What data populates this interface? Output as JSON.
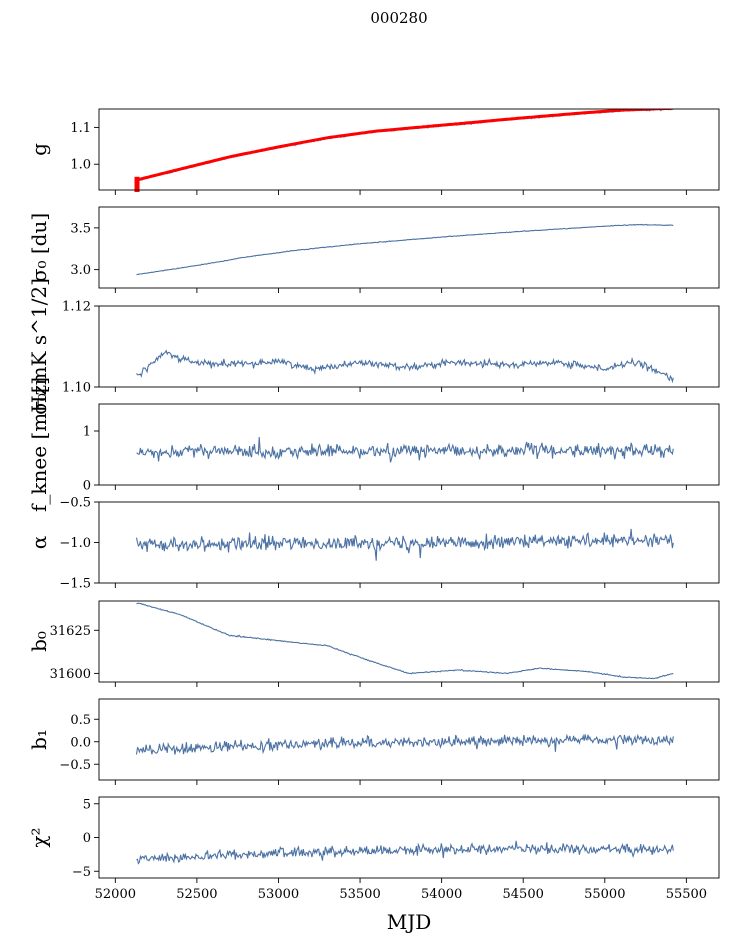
{
  "title": "000280",
  "colors": {
    "series": "#4c72a4",
    "overlay": "#ff0000",
    "axis": "#000000"
  },
  "chart_data": {
    "type": "line",
    "xlabel": "MJD",
    "xlim": [
      51900,
      55700
    ],
    "xticks": [
      52000,
      52500,
      53000,
      53500,
      54000,
      54500,
      55000,
      55500
    ],
    "xtick_labels": [
      "52000",
      "52500",
      "53000",
      "53500",
      "54000",
      "54500",
      "55000",
      "55500"
    ],
    "x_start": 52130,
    "x_end": 55420,
    "panels": [
      {
        "key": "g",
        "ylabel": "g",
        "ylim": [
          0.93,
          1.15
        ],
        "yticks": [
          1.0,
          1.1
        ],
        "ytick_labels": [
          "1.0",
          "1.1"
        ],
        "overlay_color": "#ff0000",
        "trend": [
          [
            52130,
            0.955
          ],
          [
            52400,
            0.985
          ],
          [
            52700,
            1.018
          ],
          [
            53000,
            1.045
          ],
          [
            53300,
            1.07
          ],
          [
            53600,
            1.088
          ],
          [
            53900,
            1.1
          ],
          [
            54200,
            1.112
          ],
          [
            54500,
            1.124
          ],
          [
            54800,
            1.135
          ],
          [
            55100,
            1.145
          ],
          [
            55420,
            1.15
          ]
        ],
        "noise": 0.002
      },
      {
        "key": "sigma0_du",
        "ylabel": "σ₀ [du]",
        "ylim": [
          2.78,
          3.75
        ],
        "yticks": [
          3.0,
          3.5
        ],
        "ytick_labels": [
          "3.0",
          "3.5"
        ],
        "trend": [
          [
            52130,
            2.94
          ],
          [
            52500,
            3.05
          ],
          [
            52800,
            3.15
          ],
          [
            53100,
            3.23
          ],
          [
            53500,
            3.31
          ],
          [
            54000,
            3.39
          ],
          [
            54500,
            3.46
          ],
          [
            55000,
            3.52
          ],
          [
            55200,
            3.54
          ],
          [
            55420,
            3.53
          ]
        ],
        "noise": 0.004
      },
      {
        "key": "sigma0_mk",
        "ylabel": "σ₀[mK s^1/2]",
        "ylim": [
          1.1,
          1.12
        ],
        "yticks": [
          1.1,
          1.12
        ],
        "ytick_labels": [
          "1.10",
          "1.12"
        ],
        "trend": [
          [
            52130,
            1.1025
          ],
          [
            52300,
            1.1085
          ],
          [
            52500,
            1.106
          ],
          [
            52800,
            1.1055
          ],
          [
            53000,
            1.1065
          ],
          [
            53200,
            1.1045
          ],
          [
            53500,
            1.106
          ],
          [
            53800,
            1.105
          ],
          [
            54100,
            1.106
          ],
          [
            54400,
            1.1055
          ],
          [
            54700,
            1.106
          ],
          [
            55000,
            1.1045
          ],
          [
            55200,
            1.106
          ],
          [
            55420,
            1.102
          ]
        ],
        "noise": 0.0008
      },
      {
        "key": "fknee",
        "ylabel": "f_knee [mHz]",
        "ylim": [
          0,
          1.5
        ],
        "yticks": [
          0,
          1
        ],
        "ytick_labels": [
          "0",
          "1"
        ],
        "trend": [
          [
            52130,
            0.62
          ],
          [
            55420,
            0.64
          ]
        ],
        "noise": 0.12
      },
      {
        "key": "alpha",
        "ylabel": "α",
        "ylim": [
          -1.5,
          -0.5
        ],
        "yticks": [
          -1.5,
          -1.0,
          -0.5
        ],
        "ytick_labels": [
          "−1.5",
          "−1.0",
          "−0.5"
        ],
        "trend": [
          [
            52130,
            -1.02
          ],
          [
            55420,
            -0.98
          ]
        ],
        "noise": 0.08
      },
      {
        "key": "b0",
        "ylabel": "b₀",
        "ylim": [
          31595,
          31642
        ],
        "yticks": [
          31600,
          31625
        ],
        "ytick_labels": [
          "31600",
          "31625"
        ],
        "trend": [
          [
            52130,
            31641
          ],
          [
            52400,
            31634
          ],
          [
            52700,
            31622
          ],
          [
            53000,
            31619
          ],
          [
            53300,
            31616
          ],
          [
            53600,
            31606
          ],
          [
            53800,
            31600
          ],
          [
            54100,
            31602
          ],
          [
            54400,
            31600
          ],
          [
            54600,
            31603
          ],
          [
            54900,
            31601
          ],
          [
            55100,
            31598
          ],
          [
            55300,
            31597
          ],
          [
            55420,
            31600
          ]
        ],
        "noise": 0.3
      },
      {
        "key": "b1",
        "ylabel": "b₁",
        "ylim": [
          -0.85,
          0.95
        ],
        "yticks": [
          -0.5,
          0.0,
          0.5
        ],
        "ytick_labels": [
          "−0.5",
          "0.0",
          "0.5"
        ],
        "trend": [
          [
            52130,
            -0.2
          ],
          [
            52500,
            -0.15
          ],
          [
            53000,
            -0.05
          ],
          [
            54000,
            0.0
          ],
          [
            55000,
            0.05
          ],
          [
            55420,
            0.0
          ]
        ],
        "noise": 0.12
      },
      {
        "key": "chi2",
        "ylabel": "χ²",
        "ylim": [
          -6,
          6
        ],
        "yticks": [
          -5,
          0,
          5
        ],
        "ytick_labels": [
          "−5",
          "0",
          "5"
        ],
        "trend": [
          [
            52130,
            -3.2
          ],
          [
            52400,
            -3.0
          ],
          [
            52800,
            -2.4
          ],
          [
            53500,
            -2.0
          ],
          [
            54500,
            -1.6
          ],
          [
            55420,
            -1.9
          ]
        ],
        "noise": 0.7
      }
    ]
  }
}
